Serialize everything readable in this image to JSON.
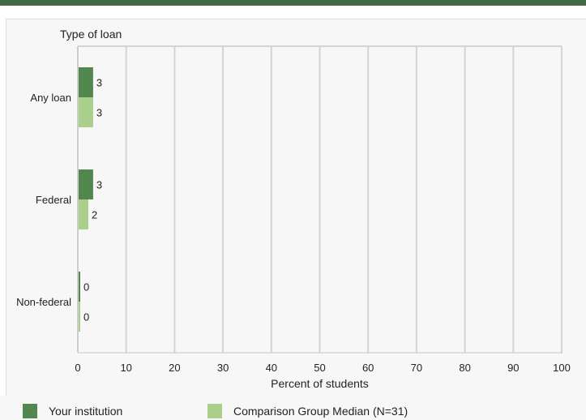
{
  "colors": {
    "top_bar": "#3f6b44",
    "your_institution": "#52874f",
    "comparison": "#a9cf8a",
    "grid": "#d4d4d4",
    "axis": "#c6c6c6",
    "text": "#222222"
  },
  "legend": {
    "items": [
      {
        "label": "Your institution",
        "color": "#52874f"
      },
      {
        "label": "Comparison Group Median (N=31)",
        "color": "#a9cf8a"
      }
    ]
  },
  "chart_data": {
    "type": "bar",
    "orientation": "horizontal",
    "y_title": "Type of loan",
    "xlabel": "Percent of students",
    "categories": [
      "Any loan",
      "Federal",
      "Non-federal"
    ],
    "series": [
      {
        "name": "Your institution",
        "values": [
          3,
          3,
          0
        ]
      },
      {
        "name": "Comparison Group Median (N=31)",
        "values": [
          3,
          2,
          0
        ]
      }
    ],
    "xlim": [
      0,
      100
    ],
    "xticks": [
      0,
      10,
      20,
      30,
      40,
      50,
      60,
      70,
      80,
      90,
      100
    ],
    "grid": true,
    "legend_position": "bottom"
  }
}
